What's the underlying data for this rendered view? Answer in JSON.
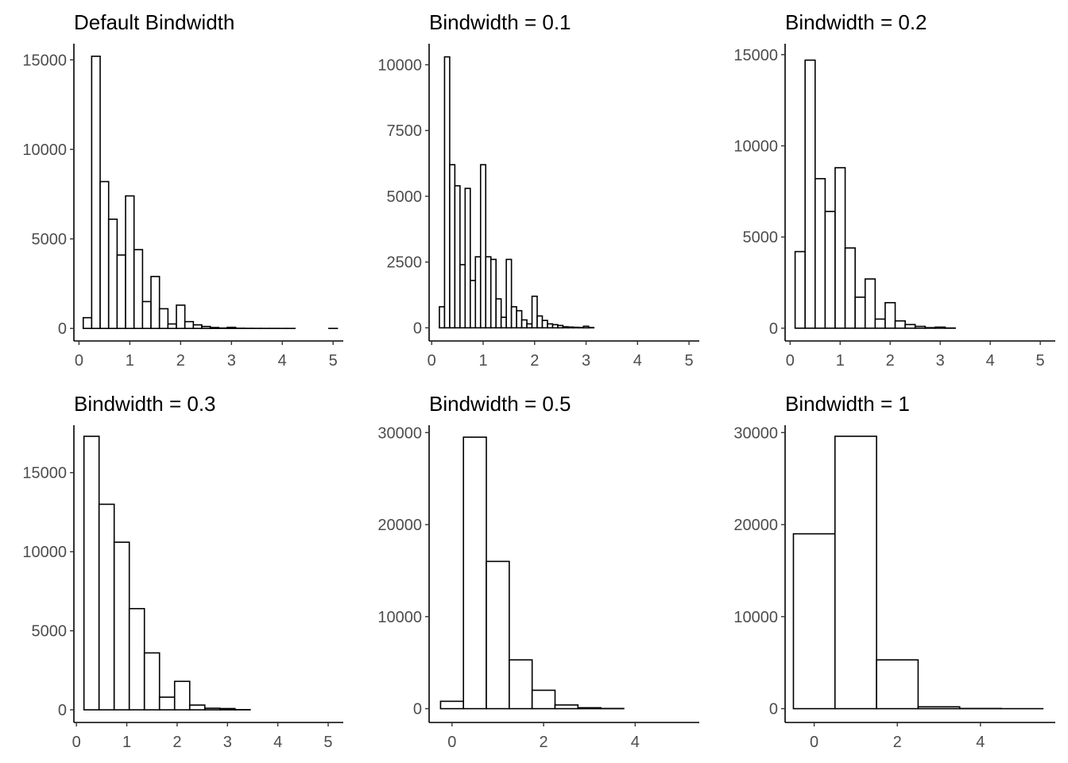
{
  "chart_data": [
    {
      "type": "bar",
      "title": "Default Bindwidth",
      "xlim": [
        -0.1,
        5.2
      ],
      "ylim": [
        -700,
        15900
      ],
      "xticks": [
        0,
        1,
        2,
        3,
        4,
        5
      ],
      "yticks": [
        0,
        5000,
        10000,
        15000
      ],
      "bin_width": 0.1667,
      "bins": [
        {
          "x": 0.167,
          "count": 600
        },
        {
          "x": 0.333,
          "count": 15200
        },
        {
          "x": 0.5,
          "count": 8200
        },
        {
          "x": 0.667,
          "count": 6100
        },
        {
          "x": 0.833,
          "count": 4100
        },
        {
          "x": 1.0,
          "count": 7400
        },
        {
          "x": 1.167,
          "count": 4400
        },
        {
          "x": 1.333,
          "count": 1500
        },
        {
          "x": 1.5,
          "count": 2900
        },
        {
          "x": 1.667,
          "count": 1100
        },
        {
          "x": 1.833,
          "count": 250
        },
        {
          "x": 2.0,
          "count": 1300
        },
        {
          "x": 2.167,
          "count": 380
        },
        {
          "x": 2.333,
          "count": 200
        },
        {
          "x": 2.5,
          "count": 110
        },
        {
          "x": 2.667,
          "count": 50
        },
        {
          "x": 2.833,
          "count": 20
        },
        {
          "x": 3.0,
          "count": 60
        },
        {
          "x": 3.167,
          "count": 10
        },
        {
          "x": 3.333,
          "count": 5
        },
        {
          "x": 3.5,
          "count": 3
        },
        {
          "x": 3.667,
          "count": 2
        },
        {
          "x": 3.833,
          "count": 2
        },
        {
          "x": 4.0,
          "count": 1
        },
        {
          "x": 4.167,
          "count": 1
        },
        {
          "x": 4.333,
          "count": 0
        },
        {
          "x": 4.5,
          "count": 0
        },
        {
          "x": 4.667,
          "count": 0
        },
        {
          "x": 4.833,
          "count": 0
        },
        {
          "x": 5.0,
          "count": 1
        }
      ]
    },
    {
      "type": "bar",
      "title": "Bindwidth = 0.1",
      "xlim": [
        -0.05,
        5.2
      ],
      "ylim": [
        -500,
        10800
      ],
      "xticks": [
        0,
        1,
        2,
        3,
        4,
        5
      ],
      "yticks": [
        0,
        2500,
        5000,
        7500,
        10000
      ],
      "bin_width": 0.1,
      "bins": [
        {
          "x": 0.2,
          "count": 800
        },
        {
          "x": 0.3,
          "count": 10300
        },
        {
          "x": 0.4,
          "count": 6200
        },
        {
          "x": 0.5,
          "count": 5400
        },
        {
          "x": 0.6,
          "count": 2400
        },
        {
          "x": 0.7,
          "count": 5300
        },
        {
          "x": 0.8,
          "count": 1800
        },
        {
          "x": 0.9,
          "count": 2700
        },
        {
          "x": 1.0,
          "count": 6200
        },
        {
          "x": 1.1,
          "count": 2700
        },
        {
          "x": 1.2,
          "count": 2600
        },
        {
          "x": 1.3,
          "count": 1100
        },
        {
          "x": 1.4,
          "count": 400
        },
        {
          "x": 1.5,
          "count": 2600
        },
        {
          "x": 1.6,
          "count": 800
        },
        {
          "x": 1.7,
          "count": 650
        },
        {
          "x": 1.8,
          "count": 300
        },
        {
          "x": 1.9,
          "count": 150
        },
        {
          "x": 2.0,
          "count": 1200
        },
        {
          "x": 2.1,
          "count": 450
        },
        {
          "x": 2.2,
          "count": 280
        },
        {
          "x": 2.3,
          "count": 150
        },
        {
          "x": 2.4,
          "count": 120
        },
        {
          "x": 2.5,
          "count": 90
        },
        {
          "x": 2.6,
          "count": 40
        },
        {
          "x": 2.7,
          "count": 30
        },
        {
          "x": 2.8,
          "count": 20
        },
        {
          "x": 2.9,
          "count": 10
        },
        {
          "x": 3.0,
          "count": 60
        },
        {
          "x": 3.1,
          "count": 10
        }
      ]
    },
    {
      "type": "bar",
      "title": "Bindwidth = 0.2",
      "xlim": [
        -0.1,
        5.3
      ],
      "ylim": [
        -700,
        15600
      ],
      "xticks": [
        0,
        1,
        2,
        3,
        4,
        5
      ],
      "yticks": [
        0,
        5000,
        10000,
        15000
      ],
      "bin_width": 0.2,
      "bins": [
        {
          "x": 0.2,
          "count": 4200
        },
        {
          "x": 0.4,
          "count": 14700
        },
        {
          "x": 0.6,
          "count": 8200
        },
        {
          "x": 0.8,
          "count": 6400
        },
        {
          "x": 1.0,
          "count": 8800
        },
        {
          "x": 1.2,
          "count": 4400
        },
        {
          "x": 1.4,
          "count": 1700
        },
        {
          "x": 1.6,
          "count": 2700
        },
        {
          "x": 1.8,
          "count": 500
        },
        {
          "x": 2.0,
          "count": 1400
        },
        {
          "x": 2.2,
          "count": 400
        },
        {
          "x": 2.4,
          "count": 200
        },
        {
          "x": 2.6,
          "count": 100
        },
        {
          "x": 2.8,
          "count": 30
        },
        {
          "x": 3.0,
          "count": 60
        },
        {
          "x": 3.2,
          "count": 10
        }
      ]
    },
    {
      "type": "bar",
      "title": "Bindwidth = 0.3",
      "xlim": [
        -0.05,
        5.3
      ],
      "ylim": [
        -800,
        18000
      ],
      "xticks": [
        0,
        1,
        2,
        3,
        4,
        5
      ],
      "yticks": [
        0,
        5000,
        10000,
        15000
      ],
      "bin_width": 0.3,
      "bins": [
        {
          "x": 0.3,
          "count": 17300
        },
        {
          "x": 0.6,
          "count": 13000
        },
        {
          "x": 0.9,
          "count": 10600
        },
        {
          "x": 1.2,
          "count": 6400
        },
        {
          "x": 1.5,
          "count": 3600
        },
        {
          "x": 1.8,
          "count": 800
        },
        {
          "x": 2.1,
          "count": 1800
        },
        {
          "x": 2.4,
          "count": 300
        },
        {
          "x": 2.7,
          "count": 100
        },
        {
          "x": 3.0,
          "count": 80
        },
        {
          "x": 3.3,
          "count": 10
        }
      ]
    },
    {
      "type": "bar",
      "title": "Bindwidth = 0.5",
      "xlim": [
        -0.5,
        5.4
      ],
      "ylim": [
        -1500,
        30800
      ],
      "xticks": [
        0,
        2,
        4
      ],
      "yticks": [
        0,
        10000,
        20000,
        30000
      ],
      "bin_width": 0.5,
      "bins": [
        {
          "x": 0.0,
          "count": 800
        },
        {
          "x": 0.5,
          "count": 29500
        },
        {
          "x": 1.0,
          "count": 16000
        },
        {
          "x": 1.5,
          "count": 5300
        },
        {
          "x": 2.0,
          "count": 2000
        },
        {
          "x": 2.5,
          "count": 400
        },
        {
          "x": 3.0,
          "count": 100
        },
        {
          "x": 3.5,
          "count": 20
        }
      ]
    },
    {
      "type": "bar",
      "title": "Bindwidth = 1",
      "xlim": [
        -0.7,
        5.8
      ],
      "ylim": [
        -1500,
        30800
      ],
      "xticks": [
        0,
        2,
        4
      ],
      "yticks": [
        0,
        10000,
        20000,
        30000
      ],
      "bin_width": 1,
      "bins": [
        {
          "x": 0,
          "count": 19000
        },
        {
          "x": 1,
          "count": 29600
        },
        {
          "x": 2,
          "count": 5300
        },
        {
          "x": 3,
          "count": 200
        },
        {
          "x": 4,
          "count": 20
        },
        {
          "x": 5,
          "count": 1
        }
      ]
    }
  ]
}
